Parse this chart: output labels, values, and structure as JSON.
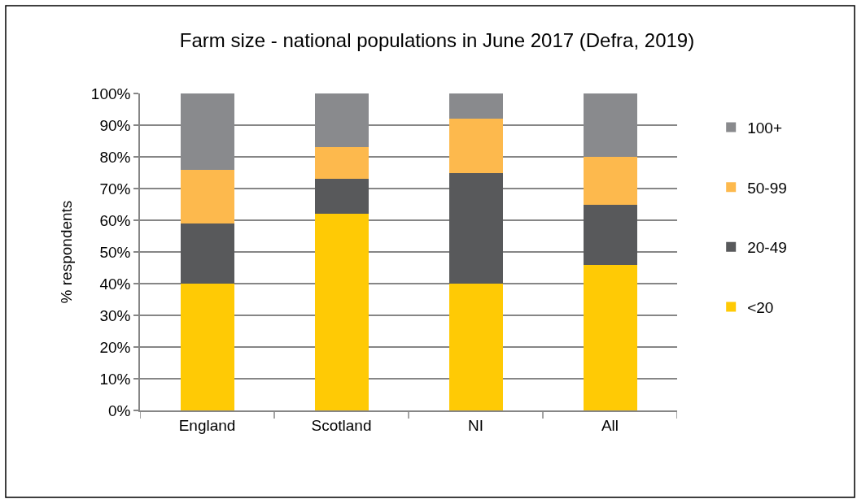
{
  "chart_data": {
    "type": "bar",
    "title": "Farm size - national populations in June 2017 (Defra, 2019)",
    "ylabel": "% respondents",
    "categories": [
      "England",
      "Scotland",
      "NI",
      "All"
    ],
    "series": [
      {
        "name": "<20",
        "color": "#ffca05",
        "values": [
          40,
          62,
          40,
          46
        ]
      },
      {
        "name": "20-49",
        "color": "#58595b",
        "values": [
          19,
          11,
          35,
          19
        ]
      },
      {
        "name": "50-99",
        "color": "#fdb94d",
        "values": [
          17,
          10,
          17,
          15
        ]
      },
      {
        "name": "100+",
        "color": "#898a8d",
        "values": [
          24,
          17,
          8,
          20
        ]
      }
    ],
    "stacked": true,
    "ylim": [
      0,
      100
    ],
    "yticks": [
      {
        "value": 0,
        "label": "0%"
      },
      {
        "value": 10,
        "label": "10%"
      },
      {
        "value": 20,
        "label": "20%"
      },
      {
        "value": 30,
        "label": "30%"
      },
      {
        "value": 40,
        "label": "40%"
      },
      {
        "value": 50,
        "label": "50%"
      },
      {
        "value": 60,
        "label": "60%"
      },
      {
        "value": 70,
        "label": "70%"
      },
      {
        "value": 80,
        "label": "80%"
      },
      {
        "value": 90,
        "label": "90%"
      },
      {
        "value": 100,
        "label": "100%"
      }
    ],
    "grid": "y",
    "legend": "right"
  }
}
